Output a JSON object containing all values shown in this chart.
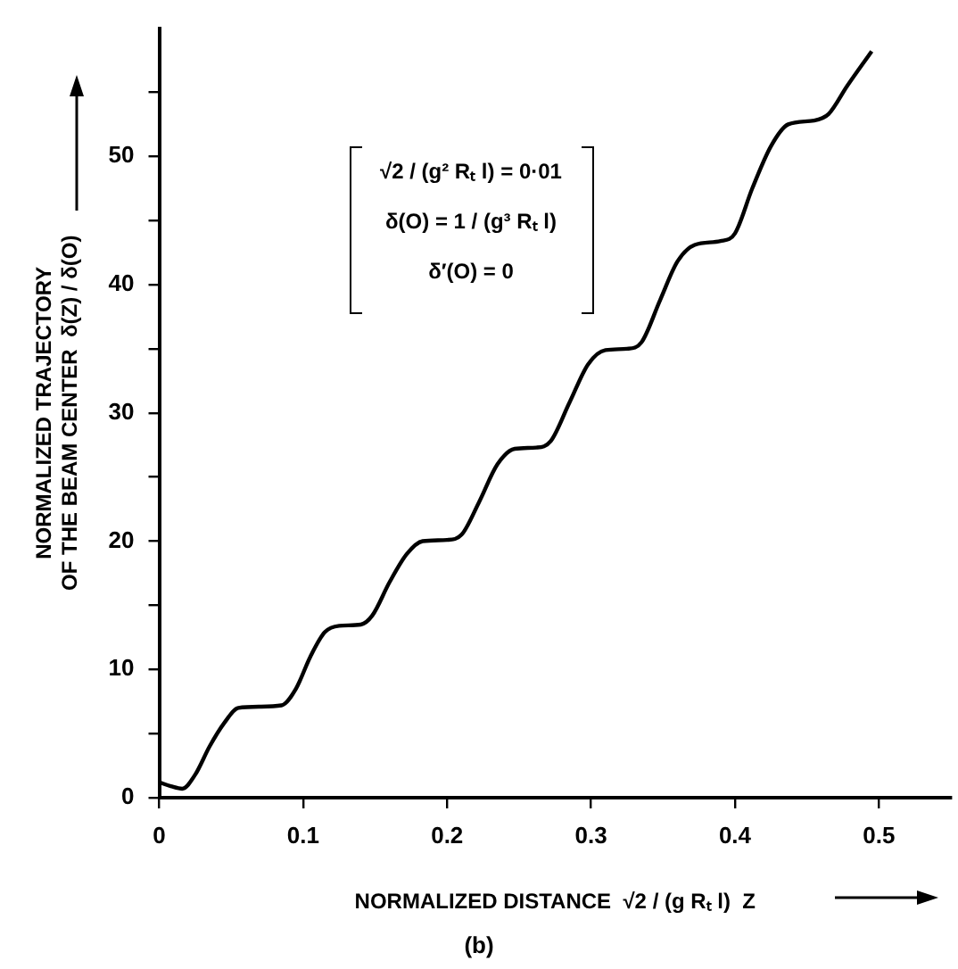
{
  "chart_data": {
    "type": "line",
    "xlabel": "NORMALIZED DISTANCE  √2 / (g Rₜ l)  Z",
    "ylabel": "NORMALIZED TRAJECTORY\nOF THE BEAM CENTER  δ(Z) / δ(O)",
    "annotations": [
      "√2 / (g² Rₜ l) = 0·01",
      "δ(O) = 1 / (g³ Rₜ l)",
      "δ′(O) = 0",
      "(b)"
    ],
    "x": [
      0,
      0.008,
      0.016,
      0.025,
      0.035,
      0.045,
      0.055,
      0.07,
      0.085,
      0.095,
      0.105,
      0.115,
      0.125,
      0.14,
      0.148,
      0.16,
      0.172,
      0.183,
      0.2,
      0.21,
      0.222,
      0.235,
      0.247,
      0.262,
      0.272,
      0.285,
      0.298,
      0.31,
      0.325,
      0.335,
      0.348,
      0.36,
      0.372,
      0.39,
      0.4,
      0.412,
      0.425,
      0.437,
      0.455,
      0.465,
      0.478,
      0.495
    ],
    "series": [
      {
        "color": "#000000",
        "values": [
          1.2,
          0.9,
          0.7,
          1.8,
          4.0,
          5.8,
          7.0,
          7.1,
          7.2,
          8.5,
          11.0,
          12.9,
          13.4,
          13.5,
          14.2,
          16.8,
          19.0,
          20.0,
          20.1,
          20.5,
          23.0,
          26.0,
          27.2,
          27.3,
          27.8,
          30.8,
          33.8,
          34.9,
          35.0,
          35.5,
          38.8,
          41.8,
          43.1,
          43.4,
          44.0,
          47.5,
          50.8,
          52.5,
          52.8,
          53.3,
          55.5,
          58.2
        ]
      }
    ],
    "xlim": [
      0,
      0.55
    ],
    "xticks": [
      0,
      0.1,
      0.2,
      0.3,
      0.4,
      0.5
    ],
    "ylim": [
      0,
      60
    ],
    "yticks": [
      0,
      {
        "value": 5,
        "label": null
      },
      10,
      {
        "value": 15,
        "label": null
      },
      20,
      {
        "value": 25,
        "label": null
      },
      30,
      {
        "value": 35,
        "label": null
      },
      40,
      {
        "value": 45,
        "label": null
      },
      50,
      {
        "value": 55,
        "label": null
      }
    ],
    "grid": false,
    "legend": false,
    "marker": "none",
    "line_style": "solid"
  }
}
